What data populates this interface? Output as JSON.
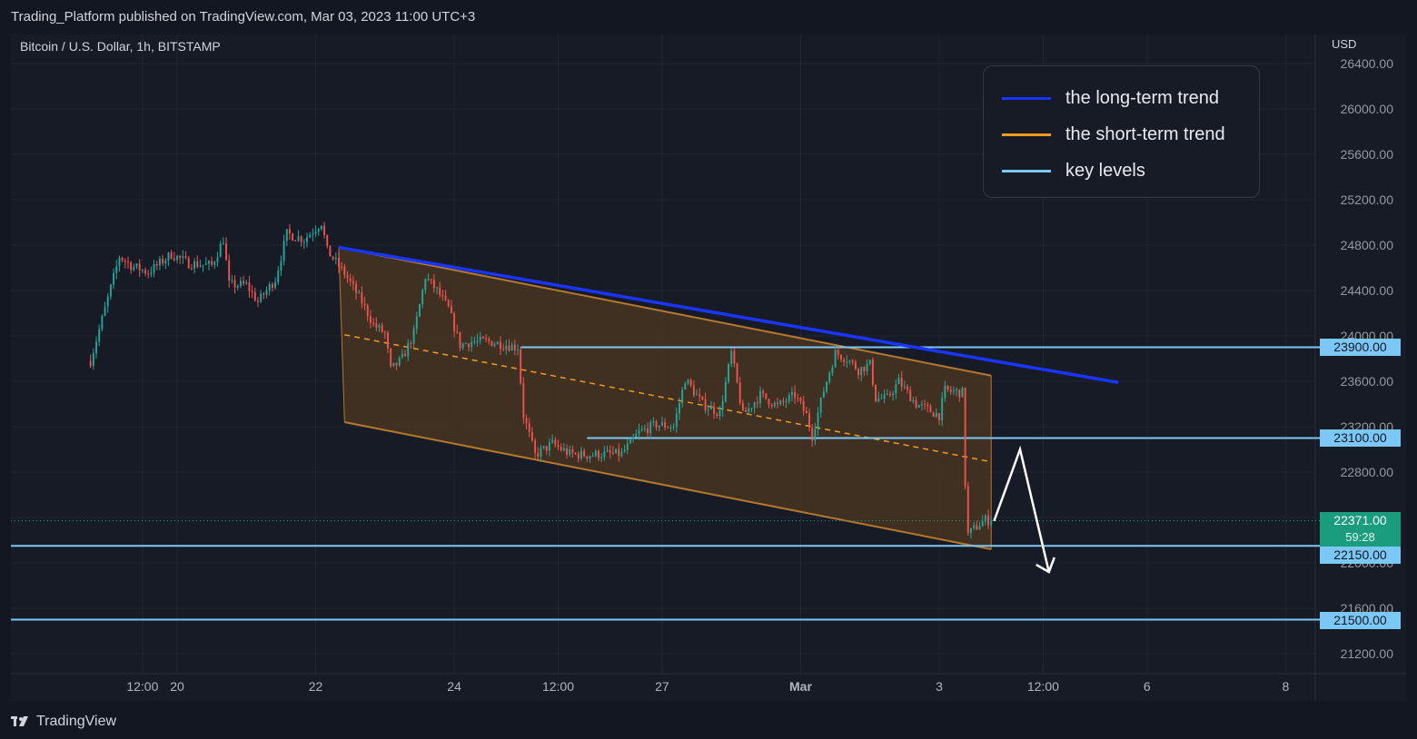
{
  "header": {
    "published_line": "Trading_Platform published on TradingView.com, Mar 03, 2023 11:00 UTC+3",
    "symbol_line": "Bitcoin / U.S. Dollar, 1h, BITSTAMP",
    "currency": "USD"
  },
  "legend": {
    "items": [
      {
        "label": "the long-term trend",
        "color": "#1a35ff"
      },
      {
        "label": "the short-term trend",
        "color": "#f29a1f"
      },
      {
        "label": "key levels",
        "color": "#7bc8f6"
      }
    ]
  },
  "price_tags": {
    "level_23900": "23900.00",
    "level_23100": "23100.00",
    "level_22150": "22150.00",
    "level_21500": "21500.00",
    "current_price": "22371.00",
    "countdown": "59:28"
  },
  "footer": {
    "brand": "TradingView"
  },
  "colors": {
    "up": "#26a69a",
    "down": "#ef5350",
    "key_level": "#7bc8f6",
    "channel_fill": "#4a3620",
    "channel_border": "#b5782c",
    "long_trend": "#1a35ff",
    "midline": "#f29a1f",
    "current_tag": "#1a9c7f"
  },
  "chart_data": {
    "type": "candlestick",
    "title": "Bitcoin / U.S. Dollar, 1h, BITSTAMP",
    "y_axis": {
      "ticks": [
        "26400.00",
        "26000.00",
        "25600.00",
        "25200.00",
        "24800.00",
        "24400.00",
        "24000.00",
        "23600.00",
        "23200.00",
        "22800.00",
        "22400.00",
        "22000.00",
        "21600.00",
        "21200.00"
      ],
      "tick_values": [
        26400,
        26000,
        25600,
        25200,
        24800,
        24400,
        24000,
        23600,
        23200,
        22800,
        22400,
        22000,
        21600,
        21200
      ],
      "ylim": [
        21000,
        26600
      ],
      "grid": true,
      "side": "right"
    },
    "x_axis": {
      "ticks": [
        "12:00",
        "20",
        "22",
        "24",
        "12:00",
        "27",
        "Mar",
        "3",
        "12:00",
        "6",
        "8"
      ],
      "tick_hours": [
        12,
        24,
        72,
        120,
        156,
        192,
        240,
        288,
        324,
        360,
        408
      ],
      "bold_ticks": [
        "Mar"
      ],
      "xlim_hours": [
        -7,
        418
      ],
      "note": "hours since Feb 19 00:00"
    },
    "candle_path": [
      {
        "t": -6,
        "p": 23780
      },
      {
        "t": 4,
        "p": 24700
      },
      {
        "t": 8,
        "p": 24620
      },
      {
        "t": 14,
        "p": 24560
      },
      {
        "t": 22,
        "p": 24720
      },
      {
        "t": 28,
        "p": 24640
      },
      {
        "t": 36,
        "p": 24620
      },
      {
        "t": 40,
        "p": 24850
      },
      {
        "t": 42,
        "p": 24450
      },
      {
        "t": 48,
        "p": 24450
      },
      {
        "t": 52,
        "p": 24300
      },
      {
        "t": 58,
        "p": 24500
      },
      {
        "t": 62,
        "p": 24900
      },
      {
        "t": 68,
        "p": 24850
      },
      {
        "t": 74,
        "p": 25000
      },
      {
        "t": 76,
        "p": 24750
      },
      {
        "t": 82,
        "p": 24550
      },
      {
        "t": 88,
        "p": 24300
      },
      {
        "t": 92,
        "p": 24100
      },
      {
        "t": 96,
        "p": 24020
      },
      {
        "t": 98,
        "p": 23700
      },
      {
        "t": 102,
        "p": 23800
      },
      {
        "t": 106,
        "p": 24020
      },
      {
        "t": 110,
        "p": 24520
      },
      {
        "t": 114,
        "p": 24400
      },
      {
        "t": 118,
        "p": 24240
      },
      {
        "t": 122,
        "p": 23920
      },
      {
        "t": 126,
        "p": 23950
      },
      {
        "t": 132,
        "p": 23950
      },
      {
        "t": 138,
        "p": 23920
      },
      {
        "t": 142,
        "p": 23900
      },
      {
        "t": 144,
        "p": 23300
      },
      {
        "t": 148,
        "p": 22950
      },
      {
        "t": 154,
        "p": 23050
      },
      {
        "t": 160,
        "p": 22960
      },
      {
        "t": 166,
        "p": 22950
      },
      {
        "t": 172,
        "p": 22960
      },
      {
        "t": 178,
        "p": 22960
      },
      {
        "t": 184,
        "p": 23150
      },
      {
        "t": 190,
        "p": 23220
      },
      {
        "t": 196,
        "p": 23200
      },
      {
        "t": 200,
        "p": 23620
      },
      {
        "t": 206,
        "p": 23400
      },
      {
        "t": 212,
        "p": 23320
      },
      {
        "t": 216,
        "p": 23850
      },
      {
        "t": 220,
        "p": 23300
      },
      {
        "t": 226,
        "p": 23480
      },
      {
        "t": 232,
        "p": 23380
      },
      {
        "t": 238,
        "p": 23480
      },
      {
        "t": 242,
        "p": 23300
      },
      {
        "t": 244,
        "p": 23120
      },
      {
        "t": 248,
        "p": 23520
      },
      {
        "t": 252,
        "p": 23850
      },
      {
        "t": 256,
        "p": 23800
      },
      {
        "t": 260,
        "p": 23700
      },
      {
        "t": 264,
        "p": 23750
      },
      {
        "t": 266,
        "p": 23450
      },
      {
        "t": 270,
        "p": 23450
      },
      {
        "t": 274,
        "p": 23600
      },
      {
        "t": 280,
        "p": 23400
      },
      {
        "t": 284,
        "p": 23350
      },
      {
        "t": 288,
        "p": 23300
      },
      {
        "t": 290,
        "p": 23520
      },
      {
        "t": 296,
        "p": 23500
      },
      {
        "t": 297,
        "p": 22700
      },
      {
        "t": 298,
        "p": 22250
      },
      {
        "t": 300,
        "p": 22300
      },
      {
        "t": 304,
        "p": 22380
      },
      {
        "t": 306,
        "p": 22371
      }
    ],
    "annotations": {
      "key_levels": [
        23900,
        23100,
        22150,
        21500
      ],
      "long_term_trend": [
        {
          "t": 80,
          "p": 24780
        },
        {
          "t": 350,
          "p": 23590
        }
      ],
      "channel_upper": [
        {
          "t": 80,
          "p": 24780
        },
        {
          "t": 306,
          "p": 23650
        }
      ],
      "channel_lower": [
        {
          "t": 82,
          "p": 23240
        },
        {
          "t": 306,
          "p": 22120
        }
      ],
      "channel_midline": [
        {
          "t": 82,
          "p": 24010
        },
        {
          "t": 306,
          "p": 22890
        }
      ],
      "projection_arrow": [
        {
          "t": 307,
          "p": 22370
        },
        {
          "t": 316,
          "p": 23000
        },
        {
          "t": 326,
          "p": 21920
        }
      ],
      "current_price": 22371
    }
  }
}
